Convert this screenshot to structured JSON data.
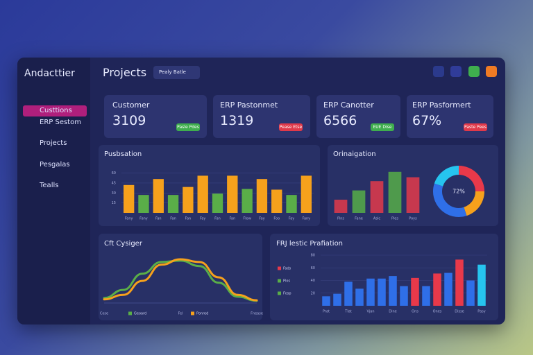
{
  "brand": "Andacttier",
  "nav": [
    "Custtions",
    "ERP Sestom",
    "Projects",
    "Pesgalas",
    "Tealls"
  ],
  "header": {
    "title": "Projects",
    "filter": "Pealy Batle"
  },
  "kpis": [
    {
      "label": "Customer",
      "value": "3109",
      "badge": "Pasle Pdes"
    },
    {
      "label": "ERP Pastonmet",
      "value": "1319",
      "badge": "Pease Etse"
    },
    {
      "label": "ERP Canotter",
      "value": "6566",
      "badge": "EUE Dise"
    },
    {
      "label": "ERP Pasformert",
      "value": "67%",
      "badge": "Paste Pees"
    }
  ],
  "charts": [
    {
      "type": "bar",
      "title": "Pusbsation",
      "categories": [
        "Fany",
        "Fany",
        "Fan",
        "Fan",
        "Fan",
        "Fay",
        "Fan",
        "Fan",
        "Flow",
        "Fay",
        "Foo",
        "Fay",
        "Fany"
      ],
      "values": [
        42,
        27,
        51,
        27,
        39,
        56,
        29,
        56,
        36,
        51,
        35,
        27,
        56
      ],
      "colors": [
        "#f6a11c",
        "#5aae48",
        "#f6a11c",
        "#5aae48",
        "#f6a11c",
        "#f6a11c",
        "#5aae48",
        "#f6a11c",
        "#5aae48",
        "#f6a11c",
        "#f6a11c",
        "#5aae48",
        "#f6a11c"
      ],
      "ylim": [
        0,
        70
      ],
      "yticks": [
        15,
        30,
        45,
        60
      ]
    },
    {
      "type": "bar",
      "title": "Orinaigation",
      "categories": [
        "Pins",
        "Fane",
        "Asic",
        "Pies",
        "Poys"
      ],
      "values": [
        17,
        29,
        41,
        53,
        46
      ],
      "colors": [
        "#c7384e",
        "#4f9a4c",
        "#c7384e",
        "#4f9a4c",
        "#c7384e"
      ],
      "ylim": [
        0,
        60
      ]
    },
    {
      "type": "pie",
      "center_label": "72%",
      "values": [
        25,
        20,
        35,
        20
      ],
      "colors": [
        "#e8394a",
        "#f6a11c",
        "#2f6fe8",
        "#26c4ef"
      ]
    },
    {
      "type": "line",
      "title": "Cft Cysiger",
      "categories": [
        "Cose",
        "",
        "Geard",
        "",
        "Fel",
        "",
        "Fened",
        "",
        "Fnease"
      ],
      "series": [
        {
          "name": "Geoard",
          "color": "#5aae48",
          "values": [
            11,
            29,
            65,
            91,
            94,
            82,
            45,
            14,
            5
          ]
        },
        {
          "name": "Ponred",
          "color": "#f6a11c",
          "values": [
            8,
            18,
            49,
            85,
            97,
            91,
            57,
            18,
            6
          ]
        }
      ],
      "ylim": [
        0,
        100
      ]
    },
    {
      "type": "bar",
      "title": "FRJ lestic Prafiation",
      "categories": [
        "Prat",
        "",
        "Tlat",
        "",
        "Vjan",
        "",
        "Dine",
        "",
        "Ons",
        "",
        "Ones",
        "",
        "Disse",
        "",
        "Pasy"
      ],
      "values": [
        15,
        19,
        38,
        27,
        43,
        43,
        47,
        31,
        44,
        31,
        51,
        52,
        73,
        40,
        65
      ],
      "colors": [
        "#2f6fe8",
        "#2f6fe8",
        "#2f6fe8",
        "#2f6fe8",
        "#2f6fe8",
        "#2f6fe8",
        "#2f6fe8",
        "#2f6fe8",
        "#e8394a",
        "#2f6fe8",
        "#e8394a",
        "#2f6fe8",
        "#e8394a",
        "#2f6fe8",
        "#26c4ef"
      ],
      "ylim": [
        0,
        80
      ],
      "yticks": [
        20,
        40,
        60,
        80
      ],
      "legend": [
        {
          "name": "Fads",
          "color": "#e8394a"
        },
        {
          "name": "Plos",
          "color": "#5aae48"
        },
        {
          "name": "Fosp",
          "color": "#5aae48"
        }
      ]
    }
  ]
}
